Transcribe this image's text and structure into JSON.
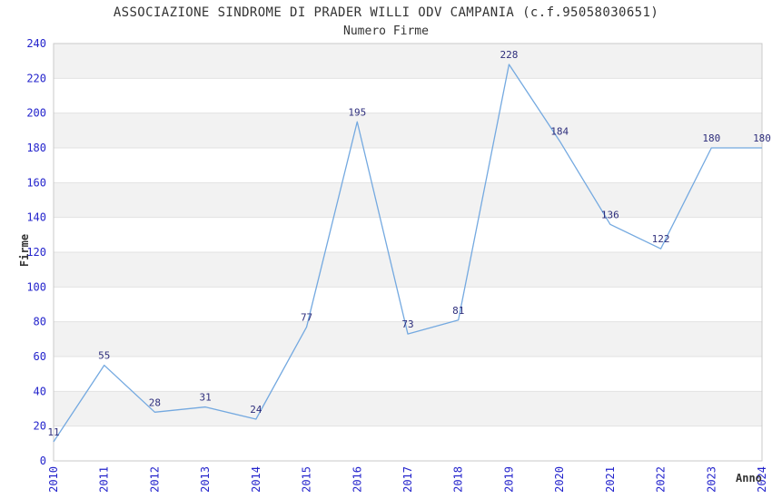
{
  "chart_data": {
    "type": "line",
    "title": "ASSOCIAZIONE SINDROME DI PRADER WILLI ODV CAMPANIA (c.f.95058030651)",
    "subtitle": "Numero Firme",
    "xlabel": "Anno",
    "ylabel": "Firme",
    "categories": [
      "2010",
      "2011",
      "2012",
      "2013",
      "2014",
      "2015",
      "2016",
      "2017",
      "2018",
      "2019",
      "2020",
      "2021",
      "2022",
      "2023",
      "2024"
    ],
    "values": [
      11,
      55,
      28,
      31,
      24,
      77,
      195,
      73,
      81,
      228,
      184,
      136,
      122,
      180,
      180
    ],
    "ylim": [
      0,
      240
    ],
    "ytick_step": 20,
    "grid": "alternating-horizontal-bands",
    "legend": "none",
    "point_labels_visible": true,
    "colors": {
      "line": "#74a9e0",
      "tick_label": "#2424cc",
      "point_label": "#2e2e7c",
      "band": "#f2f2f2",
      "gridline": "#e2e2e2",
      "plot_border": "#c9c9c9",
      "title_text": "#333333",
      "axis_title_text": "#333333",
      "background": "#ffffff"
    }
  }
}
